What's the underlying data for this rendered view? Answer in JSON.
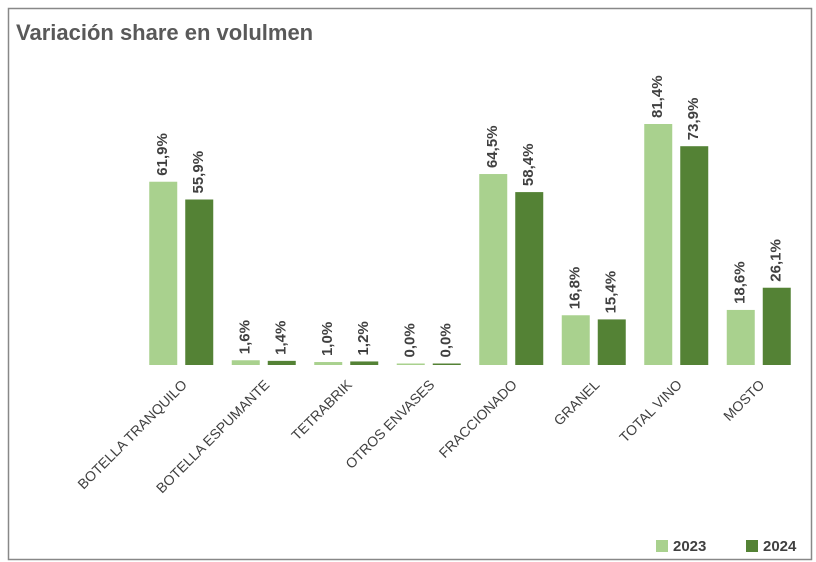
{
  "chart_data": {
    "type": "bar",
    "title": "Variación share en volulmen",
    "categories": [
      "BOTELLA TRANQUILO",
      "BOTELLA ESPUMANTE",
      "TETRABRIK",
      "OTROS ENVASES",
      "FRACCIONADO",
      "GRANEL",
      "TOTAL VINO",
      "MOSTO"
    ],
    "series": [
      {
        "name": "2023",
        "color": "#a9d18e",
        "values": [
          61.9,
          1.6,
          1.0,
          0.0,
          64.5,
          16.8,
          81.4,
          18.6
        ],
        "value_labels": [
          "61,9%",
          "1,6%",
          "1,0%",
          "0,0%",
          "64,5%",
          "16,8%",
          "81,4%",
          "18,6%"
        ]
      },
      {
        "name": "2024",
        "color": "#548235",
        "values": [
          55.9,
          1.4,
          1.2,
          0.0,
          58.4,
          15.4,
          73.9,
          26.1
        ],
        "value_labels": [
          "55,9%",
          "1,4%",
          "1,2%",
          "0,0%",
          "58,4%",
          "15,4%",
          "73,9%",
          "26,1%"
        ]
      }
    ],
    "legend": "bottom-right"
  }
}
